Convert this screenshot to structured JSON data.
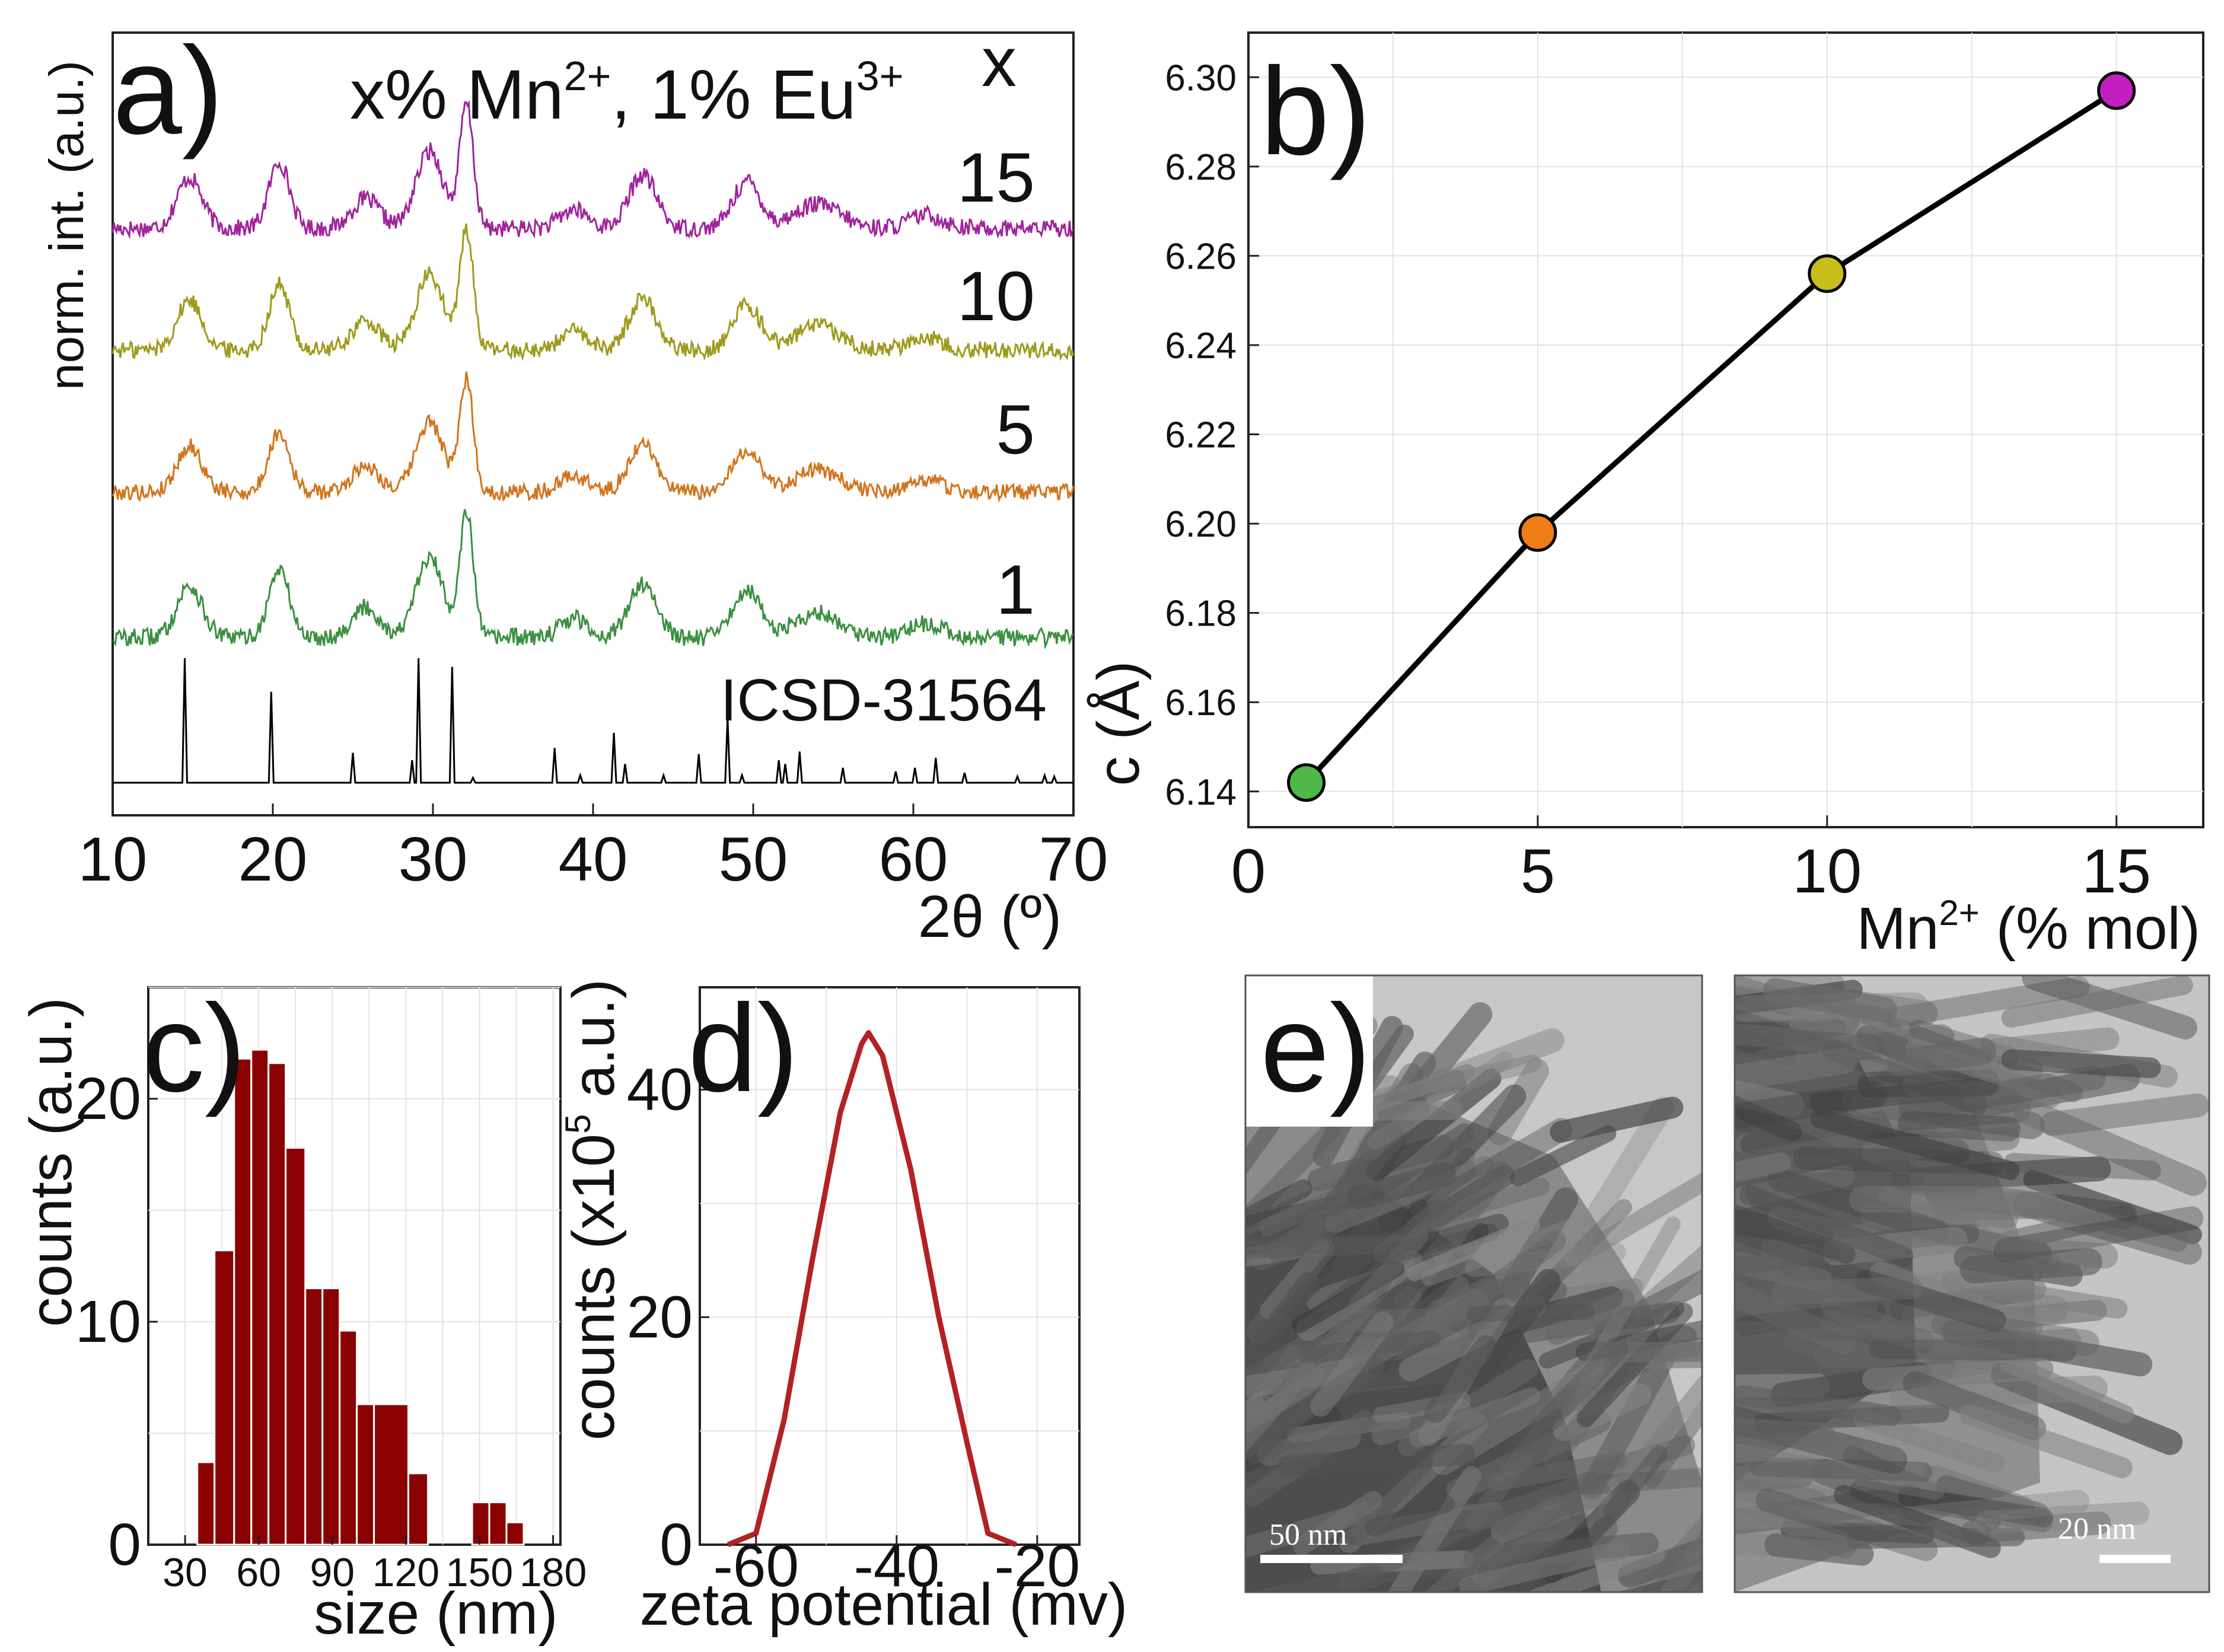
{
  "panels": {
    "a": "a)",
    "b": "b)",
    "c": "c)",
    "d": "d)",
    "e": "e)"
  },
  "colors": {
    "x15": "#a0239c",
    "x10": "#9e9a1c",
    "x5": "#d2741c",
    "x1": "#3a9040",
    "ref": "#000000",
    "hist": "#8b0000",
    "zeta": "#b22222",
    "b_pts": [
      "#4fb84a",
      "#f07c18",
      "#c8be1a",
      "#c21ec0"
    ]
  },
  "chart_data": [
    {
      "id": "a",
      "type": "line",
      "title_prefix": "x% Mn",
      "title_sup1": "2+",
      "title_mid": ", 1% Eu",
      "title_sup2": "3+",
      "legend_header": "x",
      "xlabel": "2θ (º)",
      "ylabel": "norm. int. (a.u.)",
      "xlim": [
        10,
        70
      ],
      "xticks": [
        "10",
        "20",
        "30",
        "40",
        "50",
        "60",
        "70"
      ],
      "series": [
        {
          "name": "15",
          "color": "#a0239c"
        },
        {
          "name": "10",
          "color": "#9e9a1c"
        },
        {
          "name": "5",
          "color": "#d2741c"
        },
        {
          "name": "1",
          "color": "#3a9040"
        }
      ],
      "peaks": [
        {
          "c": 14.8,
          "h": 0.38,
          "w": 1.1
        },
        {
          "c": 20.4,
          "h": 0.5,
          "w": 0.9
        },
        {
          "c": 25.8,
          "h": 0.22,
          "w": 1.2
        },
        {
          "c": 29.8,
          "h": 0.58,
          "w": 1.2
        },
        {
          "c": 32.1,
          "h": 0.92,
          "w": 0.6
        },
        {
          "c": 38.8,
          "h": 0.14,
          "w": 1.2
        },
        {
          "c": 43.1,
          "h": 0.4,
          "w": 1.2
        },
        {
          "c": 49.6,
          "h": 0.35,
          "w": 1.2
        },
        {
          "c": 54.0,
          "h": 0.18,
          "w": 2.0
        },
        {
          "c": 60.8,
          "h": 0.1,
          "w": 1.5
        }
      ],
      "reference": {
        "name": "ICSD-31564",
        "lines": [
          [
            14.5,
            1.0
          ],
          [
            19.9,
            0.73
          ],
          [
            25.0,
            0.24
          ],
          [
            28.7,
            0.18
          ],
          [
            29.1,
            1.0
          ],
          [
            31.2,
            0.93
          ],
          [
            32.5,
            0.04
          ],
          [
            37.6,
            0.28
          ],
          [
            39.2,
            0.06
          ],
          [
            41.3,
            0.4
          ],
          [
            42.0,
            0.15
          ],
          [
            44.4,
            0.06
          ],
          [
            46.6,
            0.23
          ],
          [
            48.4,
            0.52
          ],
          [
            49.3,
            0.06
          ],
          [
            51.6,
            0.18
          ],
          [
            52.0,
            0.15
          ],
          [
            52.9,
            0.25
          ],
          [
            55.6,
            0.12
          ],
          [
            58.9,
            0.09
          ],
          [
            60.1,
            0.12
          ],
          [
            61.4,
            0.2
          ],
          [
            63.2,
            0.08
          ],
          [
            66.5,
            0.05
          ],
          [
            68.2,
            0.06
          ],
          [
            68.8,
            0.05
          ]
        ]
      }
    },
    {
      "id": "b",
      "type": "line",
      "xlabel_main": "Mn",
      "xlabel_sup": "2+",
      "xlabel_rest": " (% mol)",
      "ylabel": "c (Å)",
      "xlim": [
        0,
        16.5
      ],
      "ylim": [
        6.132,
        6.31
      ],
      "xticks": [
        "0",
        "5",
        "10",
        "15"
      ],
      "yticks": [
        "6.14",
        "6.16",
        "6.18",
        "6.20",
        "6.22",
        "6.24",
        "6.26",
        "6.28",
        "6.30"
      ],
      "x": [
        1,
        5,
        10,
        15
      ],
      "y": [
        6.142,
        6.198,
        6.256,
        6.297
      ]
    },
    {
      "id": "c",
      "type": "bar",
      "xlabel": "size (nm)",
      "ylabel": "counts (a.u.)",
      "xlim": [
        15,
        183
      ],
      "ylim": [
        0,
        25
      ],
      "xticks": [
        "30",
        "60",
        "90",
        "120",
        "150",
        "180"
      ],
      "yticks": [
        "0",
        "10",
        "20"
      ],
      "bins": [
        [
          35,
          42,
          3.7
        ],
        [
          42,
          50,
          13.2
        ],
        [
          50,
          57,
          21.8
        ],
        [
          57,
          64,
          22.2
        ],
        [
          64,
          71,
          21.6
        ],
        [
          71,
          79,
          17.8
        ],
        [
          79,
          86,
          11.5
        ],
        [
          86,
          93,
          11.5
        ],
        [
          93,
          100,
          9.6
        ],
        [
          100,
          107,
          6.3
        ],
        [
          107,
          121,
          6.3
        ],
        [
          121,
          129,
          3.2
        ],
        [
          147,
          154,
          1.9
        ],
        [
          154,
          161,
          1.9
        ],
        [
          161,
          168,
          1.0
        ]
      ]
    },
    {
      "id": "d",
      "type": "line",
      "xlabel": "zeta potential (mv)",
      "ylabel_main": "counts (x10",
      "ylabel_sup": "5",
      "ylabel_rest": " a.u.)",
      "xlim": [
        -68,
        -14
      ],
      "ylim": [
        0,
        49
      ],
      "xticks": [
        "-60",
        "-40",
        "-20"
      ],
      "yticks": [
        "0",
        "20",
        "40"
      ],
      "x": [
        -64,
        -60,
        -56,
        -52,
        -48,
        -45,
        -44,
        -42,
        -38,
        -34,
        -30,
        -27,
        -23
      ],
      "y": [
        0,
        1,
        11,
        25,
        38,
        44,
        45,
        43,
        33,
        20,
        9,
        1,
        0
      ]
    }
  ],
  "tem": {
    "left_scale": "50 nm",
    "right_scale": "20 nm"
  }
}
